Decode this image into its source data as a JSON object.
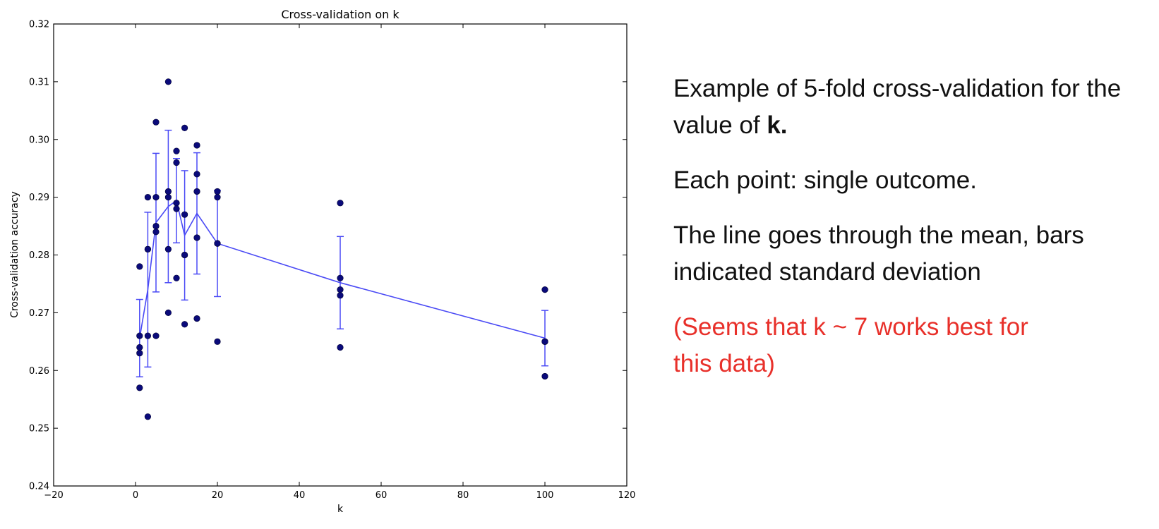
{
  "chart_data": {
    "type": "scatter",
    "title": "Cross-validation on k",
    "xlabel": "k",
    "ylabel": "Cross-validation accuracy",
    "xlim": [
      -20,
      120
    ],
    "ylim": [
      0.24,
      0.32
    ],
    "xticks": [
      "−20",
      "0",
      "20",
      "40",
      "60",
      "80",
      "100",
      "120"
    ],
    "yticks": [
      "0.24",
      "0.25",
      "0.26",
      "0.27",
      "0.28",
      "0.29",
      "0.30",
      "0.31",
      "0.32"
    ],
    "grid": false,
    "points": [
      {
        "k": 1,
        "values": [
          0.278,
          0.266,
          0.264,
          0.263,
          0.257
        ]
      },
      {
        "k": 3,
        "values": [
          0.29,
          0.281,
          0.281,
          0.266,
          0.252
        ]
      },
      {
        "k": 5,
        "values": [
          0.303,
          0.29,
          0.285,
          0.284,
          0.266
        ]
      },
      {
        "k": 8,
        "values": [
          0.31,
          0.291,
          0.29,
          0.281,
          0.27
        ]
      },
      {
        "k": 10,
        "values": [
          0.298,
          0.296,
          0.289,
          0.288,
          0.276
        ]
      },
      {
        "k": 12,
        "values": [
          0.302,
          0.287,
          0.28,
          0.28,
          0.268
        ]
      },
      {
        "k": 15,
        "values": [
          0.299,
          0.294,
          0.291,
          0.283,
          0.269
        ]
      },
      {
        "k": 20,
        "values": [
          0.291,
          0.29,
          0.282,
          0.282,
          0.265
        ]
      },
      {
        "k": 50,
        "values": [
          0.289,
          0.276,
          0.274,
          0.273,
          0.264
        ]
      },
      {
        "k": 100,
        "values": [
          0.274,
          0.265,
          0.265,
          0.265,
          0.259
        ]
      }
    ],
    "mean_line": {
      "x": [
        1,
        3,
        5,
        8,
        10,
        12,
        15,
        20,
        50,
        100
      ],
      "y": [
        0.2656,
        0.274,
        0.2856,
        0.2884,
        0.2894,
        0.2834,
        0.2872,
        0.282,
        0.2752,
        0.2656
      ]
    },
    "error_bars": {
      "x": [
        1,
        3,
        5,
        8,
        10,
        12,
        15,
        20,
        50,
        100
      ],
      "lower": [
        0.2589,
        0.2606,
        0.2736,
        0.2752,
        0.2821,
        0.2722,
        0.2767,
        0.2728,
        0.2672,
        0.2608
      ],
      "upper": [
        0.2723,
        0.2874,
        0.2976,
        0.3016,
        0.2967,
        0.2946,
        0.2977,
        0.2912,
        0.2832,
        0.2704
      ]
    },
    "colors": {
      "points": "#0a0a7a",
      "line": "#4a4af5",
      "axis": "#000000"
    }
  },
  "notes": {
    "line1": "Example of 5-fold cross-validation for the value of ",
    "line1_bold": "k.",
    "line2": "Each point: single outcome.",
    "line3": "The line goes through the mean, bars indicated standard deviation",
    "line4": "(Seems that k ~ 7 works best for this data)"
  }
}
